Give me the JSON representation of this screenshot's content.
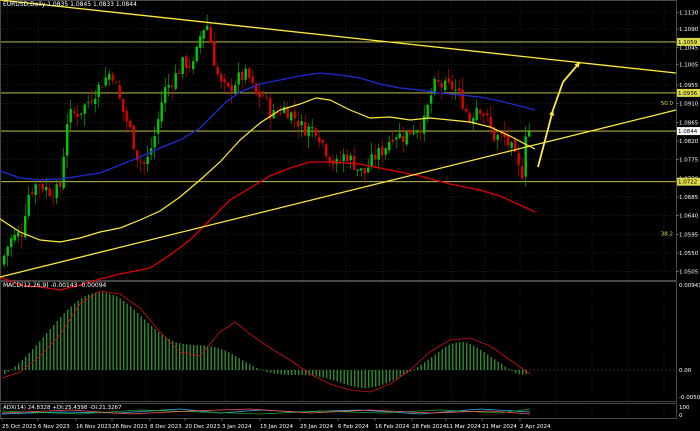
{
  "header": {
    "symbol": "EURUSD,Daily",
    "ohlc": "1.0835 1.0845 1.0833 1.0844"
  },
  "macd": {
    "label": "MACD(12,26,9) -0.00143 -0.00094",
    "levels": [
      "0.00941",
      "0.00",
      "-0.00509"
    ]
  },
  "adx": {
    "label": "ADX(14) 24.8328 +DI:25.4398 -DI:21.3267",
    "levels": [
      "100",
      "0"
    ]
  },
  "price_axis": {
    "ticks": [
      "1.1130",
      "1.1090",
      "1.1045",
      "1.1005",
      "1.0955",
      "1.0910",
      "1.0865",
      "1.0820",
      "1.0775",
      "1.0730",
      "1.0685",
      "1.0640",
      "1.0595",
      "1.0550",
      "1.0505"
    ]
  },
  "price_tags": [
    {
      "text": "1.1059",
      "level": 1.1059
    },
    {
      "text": "1.0936",
      "level": 1.0936
    },
    {
      "text": "1.0844",
      "level": 1.0844
    },
    {
      "text": "1.0722",
      "level": 1.0722
    }
  ],
  "fib_labels": [
    {
      "text": "50.0",
      "level": 1.0905
    },
    {
      "text": "38.2",
      "level": 1.059
    }
  ],
  "time_axis": {
    "labels": [
      "25 Oct 2023",
      "6 Nov 2023",
      "16 Nov 2023",
      "28 Nov 2023",
      "8 Dec 2023",
      "20 Dec 2023",
      "3 Jan 2024",
      "15 Jan 2024",
      "25 Jan 2024",
      "6 Feb 2024",
      "16 Feb 2024",
      "28 Feb 2024",
      "11 Mar 2024",
      "21 Mar 2024",
      "2 Apr 2024"
    ]
  },
  "colors": {
    "bull": "#00c800",
    "bear": "#e00000",
    "ma_fast": "#ffeb3b",
    "ma_mid": "#e00000",
    "ma_slow": "#1e2ad6",
    "trendline": "#ffeb3b",
    "grid": "#3a3a3a",
    "macd_hist": "#2e8b2e",
    "macd_signal": "#d01010",
    "adx_main": "#2fb5ff",
    "adx_plus": "#22aa22",
    "adx_minus": "#ff5a5a"
  }
}
